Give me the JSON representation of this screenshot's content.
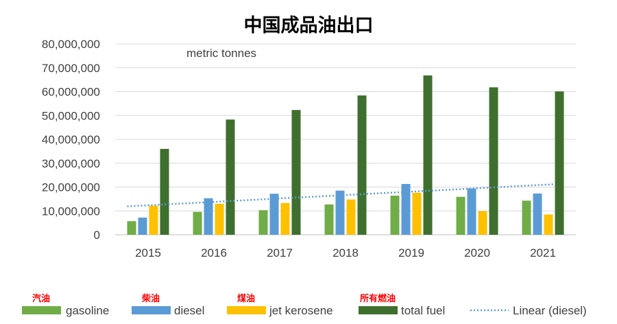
{
  "chart_data": {
    "type": "bar",
    "title": "中国成品油出口",
    "unit_note": "metric tonnes",
    "categories": [
      "2015",
      "2016",
      "2017",
      "2018",
      "2019",
      "2020",
      "2021"
    ],
    "ylim": [
      0,
      80000000
    ],
    "yticks": [
      "0",
      "10,000,000",
      "20,000,000",
      "30,000,000",
      "40,000,000",
      "50,000,000",
      "60,000,000",
      "70,000,000",
      "80,000,000"
    ],
    "ytick_values": [
      0,
      10000000,
      20000000,
      30000000,
      40000000,
      50000000,
      60000000,
      70000000,
      80000000
    ],
    "grid": true,
    "legend_position": "bottom",
    "series": [
      {
        "name": "gasoline",
        "cn_label": "汽油",
        "color": "#70AD47",
        "values": [
          5700000,
          9600000,
          10300000,
          12700000,
          16400000,
          15900000,
          14300000
        ]
      },
      {
        "name": "diesel",
        "cn_label": "柴油",
        "color": "#5B9BD5",
        "values": [
          7200000,
          15300000,
          17200000,
          18500000,
          21300000,
          19400000,
          17300000
        ]
      },
      {
        "name": "jet kerosene",
        "cn_label": "煤油",
        "color": "#FFC000",
        "values": [
          12200000,
          13000000,
          13300000,
          14800000,
          17600000,
          9900000,
          8500000
        ]
      },
      {
        "name": "total fuel",
        "cn_label": "所有燃油",
        "color": "#3F6F2E",
        "values": [
          36000000,
          48300000,
          52300000,
          58400000,
          66800000,
          61800000,
          60100000
        ]
      }
    ],
    "trendline": {
      "name": "Linear (diesel)",
      "color": "#5B9BD5",
      "style": "dotted",
      "start_value": 11900000,
      "end_value": 21200000
    },
    "cn_label_color": "#FF0000"
  }
}
